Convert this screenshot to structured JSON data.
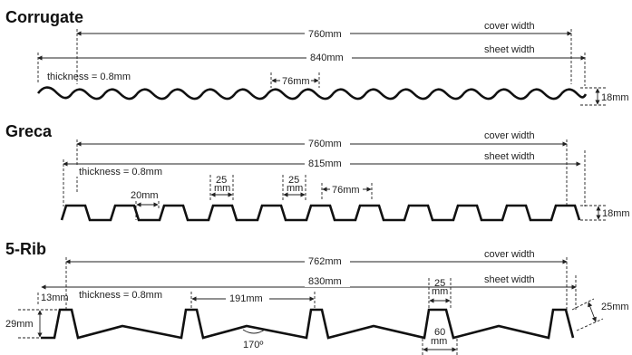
{
  "profiles": [
    {
      "title": "Corrugate",
      "cover_value": "760mm",
      "cover_label": "cover width",
      "sheet_value": "840mm",
      "sheet_label": "sheet width",
      "thickness": "thickness = 0.8mm",
      "pitch": "76mm",
      "height": "18mm"
    },
    {
      "title": "Greca",
      "cover_value": "760mm",
      "cover_label": "cover width",
      "sheet_value": "815mm",
      "sheet_label": "sheet width",
      "thickness": "thickness = 0.8mm",
      "rib_width": "20mm",
      "crest_a_top": "25",
      "crest_a_bottom": "mm",
      "crest_b_top": "25",
      "crest_b_bottom": "mm",
      "pitch": "76mm",
      "height": "18mm"
    },
    {
      "title": "5-Rib",
      "cover_value": "762mm",
      "cover_label": "cover width",
      "sheet_value": "830mm",
      "sheet_label": "sheet width",
      "thickness": "thickness = 0.8mm",
      "crest_width": "13mm",
      "pitch": "191mm",
      "rib_top_a": "25",
      "rib_top_b": "mm",
      "rib_height": "29mm",
      "rib_base_a": "60",
      "rib_base_b": "mm",
      "side_height": "25mm",
      "angle": "170º"
    }
  ]
}
